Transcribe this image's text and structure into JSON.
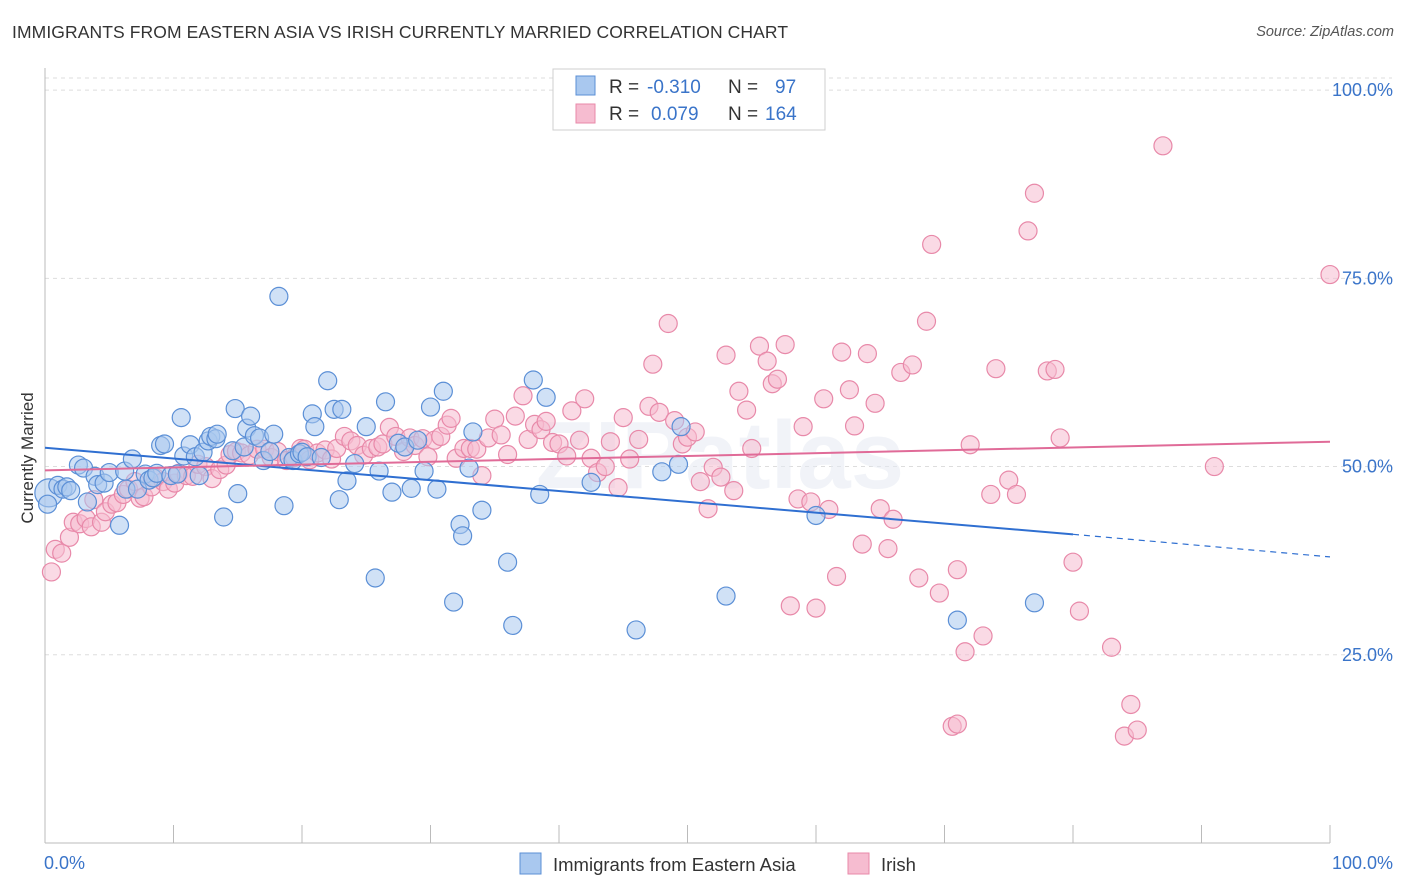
{
  "title": "IMMIGRANTS FROM EASTERN ASIA VS IRISH CURRENTLY MARRIED CORRELATION CHART",
  "source": "Source: ZipAtlas.com",
  "watermark": "ZIPatlas",
  "colors": {
    "blue_fill": "#a9c8ef",
    "blue_stroke": "#5b8fd6",
    "blue_line": "#2f6fd1",
    "pink_fill": "#f6bcd0",
    "pink_stroke": "#e889a9",
    "pink_line": "#e06b98",
    "tick_label": "#3a74c9",
    "grid": "#dddddd"
  },
  "chart_data": {
    "type": "scatter",
    "xlabel": "",
    "ylabel": "Currently Married",
    "xlim": [
      0,
      100
    ],
    "ylim": [
      0,
      104
    ],
    "x_tick_labels": [
      "0.0%",
      "100.0%"
    ],
    "y_ticks": [
      25,
      50,
      75,
      100
    ],
    "y_tick_labels": [
      "25.0%",
      "50.0%",
      "75.0%",
      "100.0%"
    ],
    "grid": true,
    "legend_position": "top-center",
    "legend": [
      {
        "r_label": "R =",
        "r_value": "-0.310",
        "n_label": "N =",
        "n_value": "97"
      },
      {
        "r_label": "R =",
        "r_value": "0.079",
        "n_label": "N =",
        "n_value": "164"
      }
    ],
    "series": [
      {
        "name": "Immigrants from Eastern Asia",
        "color": "blue",
        "trend": {
          "x0": 0,
          "y0": 52.5,
          "x1": 80,
          "y1": 41.0,
          "dashed_to_x": 100,
          "dashed_to_y": 38.0
        },
        "points": [
          [
            0.3,
            46.5
          ],
          [
            1.0,
            47.5
          ],
          [
            1.4,
            47.0
          ],
          [
            1.7,
            47.3
          ],
          [
            2.6,
            50.2
          ],
          [
            3.0,
            49.8
          ],
          [
            3.3,
            45.3
          ],
          [
            3.9,
            48.7
          ],
          [
            4.1,
            47.6
          ],
          [
            4.6,
            47.8
          ],
          [
            5.0,
            49.2
          ],
          [
            5.8,
            42.2
          ],
          [
            6.2,
            49.4
          ],
          [
            6.3,
            47.0
          ],
          [
            6.8,
            51.0
          ],
          [
            7.2,
            47.0
          ],
          [
            7.8,
            49.0
          ],
          [
            8.1,
            48.2
          ],
          [
            8.4,
            48.5
          ],
          [
            8.7,
            49.1
          ],
          [
            9.0,
            52.8
          ],
          [
            9.3,
            53.0
          ],
          [
            9.8,
            48.8
          ],
          [
            10.3,
            49.0
          ],
          [
            10.6,
            56.5
          ],
          [
            10.8,
            51.4
          ],
          [
            11.3,
            52.9
          ],
          [
            11.7,
            51.3
          ],
          [
            12.0,
            48.8
          ],
          [
            12.3,
            51.9
          ],
          [
            12.7,
            53.4
          ],
          [
            12.9,
            54.0
          ],
          [
            13.3,
            53.7
          ],
          [
            13.4,
            54.3
          ],
          [
            13.9,
            43.3
          ],
          [
            14.6,
            52.1
          ],
          [
            14.8,
            57.7
          ],
          [
            15.0,
            46.4
          ],
          [
            15.5,
            52.6
          ],
          [
            15.7,
            55.1
          ],
          [
            16.0,
            56.7
          ],
          [
            16.3,
            54.1
          ],
          [
            16.7,
            53.8
          ],
          [
            17.0,
            50.8
          ],
          [
            17.5,
            52.0
          ],
          [
            17.8,
            54.3
          ],
          [
            18.2,
            72.6
          ],
          [
            18.6,
            44.8
          ],
          [
            19.0,
            51.2
          ],
          [
            19.3,
            50.8
          ],
          [
            19.8,
            51.7
          ],
          [
            20.0,
            51.9
          ],
          [
            20.4,
            51.3
          ],
          [
            20.8,
            57.0
          ],
          [
            21.0,
            55.3
          ],
          [
            21.5,
            51.2
          ],
          [
            22.0,
            61.4
          ],
          [
            22.5,
            57.6
          ],
          [
            22.9,
            45.6
          ],
          [
            23.1,
            57.6
          ],
          [
            23.5,
            48.1
          ],
          [
            24.1,
            50.4
          ],
          [
            25.0,
            55.3
          ],
          [
            25.7,
            35.2
          ],
          [
            26.0,
            49.4
          ],
          [
            26.5,
            58.6
          ],
          [
            27.0,
            46.6
          ],
          [
            27.5,
            53.1
          ],
          [
            28.0,
            52.6
          ],
          [
            28.5,
            47.1
          ],
          [
            29.0,
            53.5
          ],
          [
            29.5,
            49.4
          ],
          [
            30.0,
            57.9
          ],
          [
            30.5,
            47.0
          ],
          [
            31.0,
            60.0
          ],
          [
            31.8,
            32.0
          ],
          [
            32.3,
            42.3
          ],
          [
            32.5,
            40.8
          ],
          [
            33.0,
            49.8
          ],
          [
            33.3,
            54.6
          ],
          [
            34.0,
            44.2
          ],
          [
            36.0,
            37.3
          ],
          [
            36.4,
            28.9
          ],
          [
            38.0,
            61.5
          ],
          [
            38.5,
            46.3
          ],
          [
            39.0,
            59.2
          ],
          [
            42.5,
            47.9
          ],
          [
            46.0,
            28.3
          ],
          [
            48.0,
            49.3
          ],
          [
            49.3,
            50.3
          ],
          [
            49.5,
            55.3
          ],
          [
            53.0,
            32.8
          ],
          [
            60.0,
            43.5
          ],
          [
            71.0,
            29.6
          ],
          [
            77.0,
            31.9
          ],
          [
            0.2,
            45.0
          ],
          [
            2.0,
            46.8
          ]
        ]
      },
      {
        "name": "Irish",
        "color": "pink",
        "trend": {
          "x0": 0,
          "y0": 49.5,
          "x1": 100,
          "y1": 53.3
        },
        "points": [
          [
            0.5,
            36.0
          ],
          [
            0.8,
            39.0
          ],
          [
            1.3,
            38.5
          ],
          [
            1.9,
            40.6
          ],
          [
            2.2,
            42.6
          ],
          [
            2.7,
            42.4
          ],
          [
            3.2,
            43.1
          ],
          [
            3.6,
            42.0
          ],
          [
            3.8,
            45.6
          ],
          [
            4.4,
            42.6
          ],
          [
            4.7,
            44.0
          ],
          [
            5.2,
            45.0
          ],
          [
            5.6,
            45.2
          ],
          [
            6.1,
            46.3
          ],
          [
            6.5,
            47.0
          ],
          [
            7.0,
            48.0
          ],
          [
            7.4,
            45.8
          ],
          [
            7.7,
            46.0
          ],
          [
            8.3,
            47.3
          ],
          [
            8.6,
            48.5
          ],
          [
            9.2,
            48.0
          ],
          [
            9.6,
            47.0
          ],
          [
            10.1,
            47.8
          ],
          [
            10.4,
            49.1
          ],
          [
            11.0,
            48.8
          ],
          [
            11.5,
            48.7
          ],
          [
            11.9,
            50.3
          ],
          [
            12.5,
            50.0
          ],
          [
            13.0,
            48.4
          ],
          [
            13.6,
            49.6
          ],
          [
            14.1,
            50.2
          ],
          [
            14.4,
            51.6
          ],
          [
            14.9,
            52.0
          ],
          [
            15.3,
            51.8
          ],
          [
            15.9,
            51.5
          ],
          [
            16.5,
            52.3
          ],
          [
            17.1,
            52.3
          ],
          [
            17.6,
            51.2
          ],
          [
            18.1,
            52.0
          ],
          [
            18.8,
            50.8
          ],
          [
            19.4,
            51.2
          ],
          [
            19.9,
            52.4
          ],
          [
            20.2,
            52.3
          ],
          [
            20.6,
            50.9
          ],
          [
            21.2,
            51.8
          ],
          [
            21.8,
            52.2
          ],
          [
            22.3,
            51.0
          ],
          [
            22.7,
            52.4
          ],
          [
            23.3,
            54.0
          ],
          [
            23.8,
            53.4
          ],
          [
            24.3,
            52.8
          ],
          [
            24.8,
            51.5
          ],
          [
            25.4,
            52.4
          ],
          [
            25.9,
            52.6
          ],
          [
            26.3,
            53.0
          ],
          [
            26.8,
            55.2
          ],
          [
            27.3,
            54.0
          ],
          [
            27.9,
            52.0
          ],
          [
            28.4,
            53.8
          ],
          [
            28.8,
            52.8
          ],
          [
            29.4,
            53.7
          ],
          [
            29.8,
            51.3
          ],
          [
            30.3,
            53.5
          ],
          [
            30.8,
            54.0
          ],
          [
            31.3,
            55.5
          ],
          [
            31.6,
            56.4
          ],
          [
            32.0,
            51.1
          ],
          [
            32.6,
            52.4
          ],
          [
            33.1,
            52.4
          ],
          [
            33.6,
            52.3
          ],
          [
            34.0,
            48.8
          ],
          [
            34.5,
            53.8
          ],
          [
            35.0,
            56.3
          ],
          [
            35.5,
            54.2
          ],
          [
            36.0,
            51.6
          ],
          [
            36.6,
            56.7
          ],
          [
            37.2,
            59.4
          ],
          [
            37.6,
            53.6
          ],
          [
            38.1,
            55.6
          ],
          [
            38.6,
            54.9
          ],
          [
            39.0,
            56.0
          ],
          [
            39.5,
            53.2
          ],
          [
            40.0,
            53.0
          ],
          [
            40.6,
            51.4
          ],
          [
            41.0,
            57.4
          ],
          [
            41.6,
            53.5
          ],
          [
            42.0,
            59.0
          ],
          [
            42.5,
            51.1
          ],
          [
            43.0,
            49.2
          ],
          [
            43.6,
            50.0
          ],
          [
            44.0,
            53.3
          ],
          [
            44.6,
            47.2
          ],
          [
            45.0,
            56.5
          ],
          [
            45.5,
            51.0
          ],
          [
            46.2,
            53.6
          ],
          [
            47.0,
            58.0
          ],
          [
            47.3,
            63.6
          ],
          [
            47.8,
            57.2
          ],
          [
            48.5,
            69.0
          ],
          [
            49.0,
            56.1
          ],
          [
            49.6,
            53.0
          ],
          [
            50.0,
            53.9
          ],
          [
            50.6,
            54.6
          ],
          [
            51.0,
            48.0
          ],
          [
            51.6,
            44.4
          ],
          [
            52.0,
            49.9
          ],
          [
            52.6,
            48.6
          ],
          [
            53.0,
            64.8
          ],
          [
            53.6,
            46.8
          ],
          [
            54.0,
            60.0
          ],
          [
            54.6,
            57.5
          ],
          [
            55.0,
            52.4
          ],
          [
            55.6,
            66.0
          ],
          [
            56.2,
            64.0
          ],
          [
            56.6,
            61.0
          ],
          [
            57.0,
            61.6
          ],
          [
            57.6,
            66.2
          ],
          [
            58.0,
            31.5
          ],
          [
            58.6,
            45.7
          ],
          [
            59.0,
            55.3
          ],
          [
            59.6,
            45.3
          ],
          [
            60.0,
            31.2
          ],
          [
            60.6,
            59.0
          ],
          [
            61.0,
            44.3
          ],
          [
            61.6,
            35.4
          ],
          [
            62.0,
            65.2
          ],
          [
            62.6,
            60.2
          ],
          [
            63.0,
            55.4
          ],
          [
            63.6,
            39.7
          ],
          [
            64.0,
            65.0
          ],
          [
            64.6,
            58.4
          ],
          [
            65.0,
            44.4
          ],
          [
            65.6,
            39.1
          ],
          [
            66.0,
            43.0
          ],
          [
            66.6,
            62.5
          ],
          [
            67.5,
            63.5
          ],
          [
            68.0,
            35.2
          ],
          [
            68.6,
            69.3
          ],
          [
            69.0,
            79.5
          ],
          [
            69.6,
            33.2
          ],
          [
            70.6,
            15.5
          ],
          [
            71.0,
            36.3
          ],
          [
            71.6,
            25.4
          ],
          [
            72.0,
            52.9
          ],
          [
            73.0,
            27.5
          ],
          [
            73.6,
            46.3
          ],
          [
            74.0,
            63.0
          ],
          [
            75.0,
            48.2
          ],
          [
            75.6,
            46.3
          ],
          [
            76.5,
            81.3
          ],
          [
            77.0,
            86.3
          ],
          [
            78.0,
            62.7
          ],
          [
            78.6,
            62.9
          ],
          [
            79.0,
            53.8
          ],
          [
            80.0,
            37.3
          ],
          [
            80.5,
            30.8
          ],
          [
            83.0,
            26.0
          ],
          [
            84.0,
            14.2
          ],
          [
            84.5,
            18.4
          ],
          [
            85.0,
            15.0
          ],
          [
            87.0,
            92.6
          ],
          [
            91.0,
            50.0
          ],
          [
            100.0,
            75.5
          ],
          [
            71.0,
            15.8
          ]
        ]
      }
    ]
  }
}
